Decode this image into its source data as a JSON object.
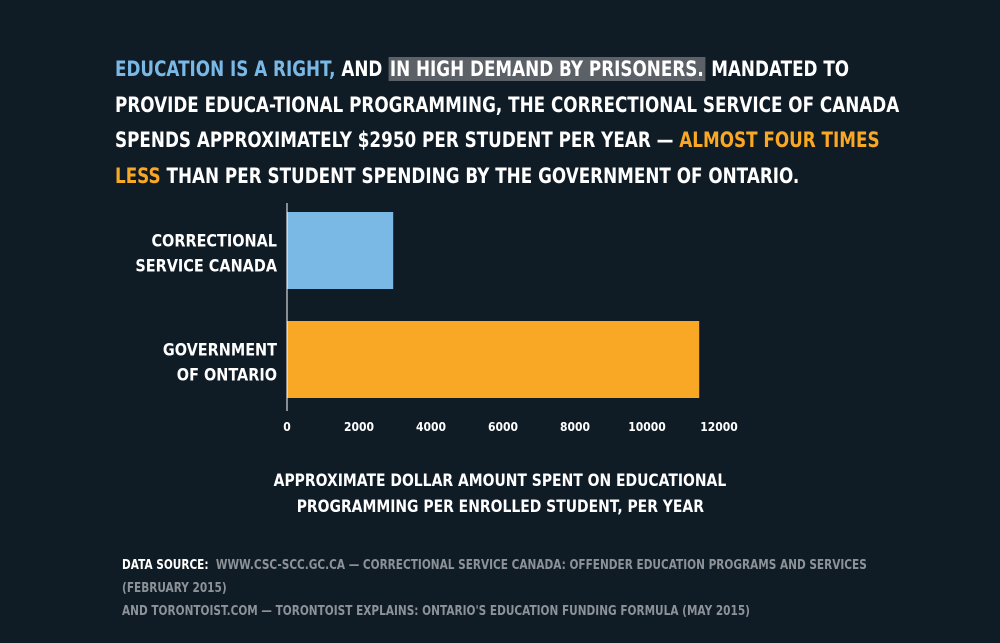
{
  "headline": {
    "part1": "Education is a right,",
    "part2": " and ",
    "part3": "in high demand by prisoners.",
    "part4": " Mandated to provide educa-tional programming, the Correctional Service of Canada spends approximately $2950 per student per year — ",
    "part5": "almost four times less",
    "part6": " than per student spending by the Government of Ontario."
  },
  "colors": {
    "background": "#0f1b25",
    "csc_bar": "#7ab8e6",
    "ontario_bar": "#f9a825",
    "highlight": "#5b6166"
  },
  "chart_data": {
    "type": "bar",
    "orientation": "horizontal",
    "categories": [
      "CORRECTIONAL\nSERVICE CANADA",
      "GOVERNMENT\nOF ONTARIO"
    ],
    "values": [
      2950,
      11450
    ],
    "bar_colors": [
      "#7ab8e6",
      "#f9a825"
    ],
    "xlim": [
      0,
      12000
    ],
    "xticks": [
      0,
      2000,
      4000,
      6000,
      8000,
      10000,
      12000
    ],
    "xlabel": "Approximate dollar amount spent on educational programming per enrolled student, per year",
    "grid": false
  },
  "axis_caption": {
    "line1": "Approximate dollar amount spent on educational",
    "line2": "programming per enrolled student, per year"
  },
  "source": {
    "label": "Data Source:",
    "line1": "www.csc-scc.gc.ca — Correctional Service Canada: Offender Education Programs and Services (February 2015)",
    "line2": "and torontoist.com — Torontoist Explains: Ontario's Education Funding Formula (May 2015)"
  }
}
